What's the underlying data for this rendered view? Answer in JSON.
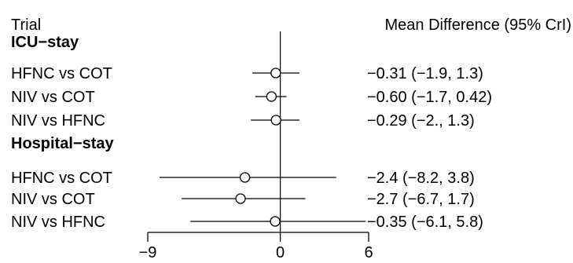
{
  "chart_data": {
    "type": "forest",
    "headers": {
      "left": "Trial",
      "right": "Mean Difference (95% CrI)"
    },
    "groups": [
      {
        "label": "ICU−stay",
        "rows": [
          {
            "label": "HFNC vs COT",
            "mean": -0.31,
            "lower": -1.9,
            "upper": 1.3,
            "text": "−0.31 (−1.9, 1.3)"
          },
          {
            "label": "NIV vs COT",
            "mean": -0.6,
            "lower": -1.7,
            "upper": 0.42,
            "text": "−0.60 (−1.7, 0.42)"
          },
          {
            "label": "NIV vs HFNC",
            "mean": -0.29,
            "lower": -2.0,
            "upper": 1.3,
            "text": "−0.29 (−2., 1.3)"
          }
        ]
      },
      {
        "label": "Hospital−stay",
        "rows": [
          {
            "label": "HFNC vs COT",
            "mean": -2.4,
            "lower": -8.2,
            "upper": 3.8,
            "text": "−2.4 (−8.2, 3.8)"
          },
          {
            "label": "NIV vs COT",
            "mean": -2.7,
            "lower": -6.7,
            "upper": 1.7,
            "text": "−2.7 (−6.7, 1.7)"
          },
          {
            "label": "NIV vs HFNC",
            "mean": -0.35,
            "lower": -6.1,
            "upper": 5.8,
            "text": "−0.35 (−6.1, 5.8)"
          }
        ]
      }
    ],
    "x_axis": {
      "ticks": [
        -9,
        0,
        6
      ],
      "tick_labels": [
        "−9",
        "0",
        "6"
      ],
      "xlim": [
        -9,
        6
      ],
      "reference_line": 0
    },
    "grid": false
  }
}
